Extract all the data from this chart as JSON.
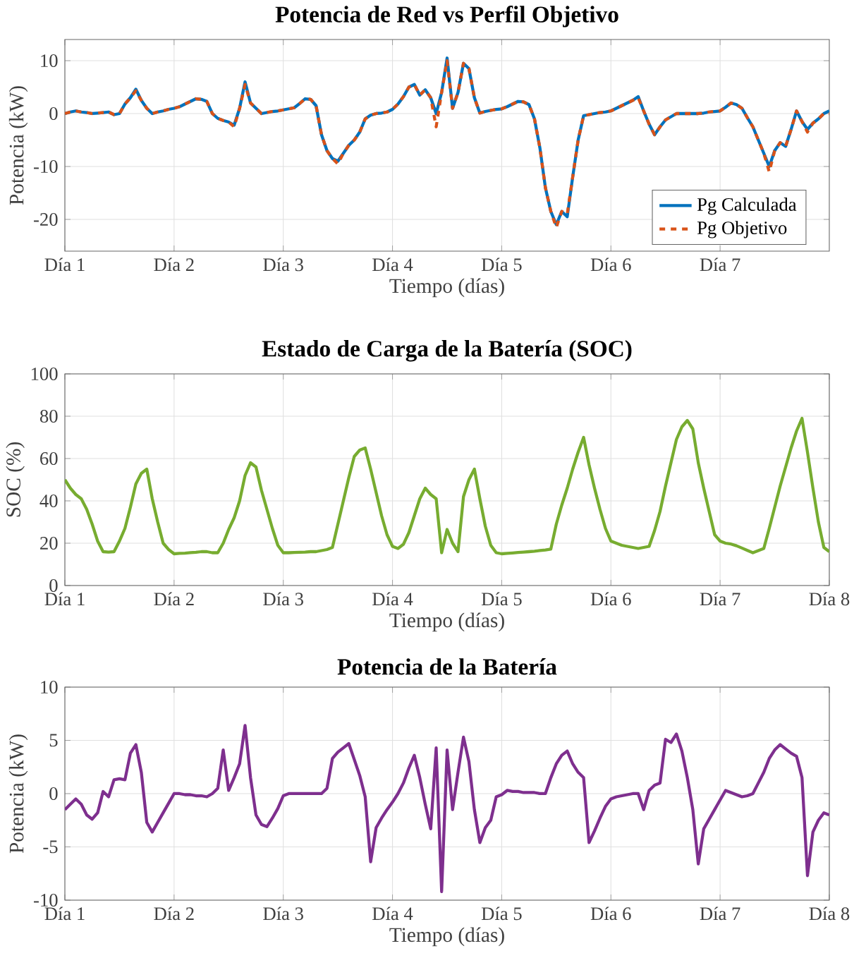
{
  "chart_data": [
    {
      "type": "line",
      "title": "Potencia de Red vs Perfil Objetivo",
      "xlabel": "Tiempo (días)",
      "ylabel": "Potencia (kW)",
      "categories": [
        "Día 1",
        null,
        null,
        null,
        null,
        null,
        null,
        null,
        null,
        null,
        null,
        null,
        null,
        null,
        null,
        null,
        null,
        null,
        null,
        null,
        "Día 2",
        null,
        null,
        null,
        null,
        null,
        null,
        null,
        null,
        null,
        null,
        null,
        null,
        null,
        null,
        null,
        null,
        null,
        null,
        null,
        "Día 3",
        null,
        null,
        null,
        null,
        null,
        null,
        null,
        null,
        null,
        null,
        null,
        null,
        null,
        null,
        null,
        null,
        null,
        null,
        null,
        "Día 4",
        null,
        null,
        null,
        null,
        null,
        null,
        null,
        null,
        null,
        null,
        null,
        null,
        null,
        null,
        null,
        null,
        null,
        null,
        null,
        "Día 5",
        null,
        null,
        null,
        null,
        null,
        null,
        null,
        null,
        null,
        null,
        null,
        null,
        null,
        null,
        null,
        null,
        null,
        null,
        null,
        "Día 6",
        null,
        null,
        null,
        null,
        null,
        null,
        null,
        null,
        null,
        null,
        null,
        null,
        null,
        null,
        null,
        null,
        null,
        null,
        null,
        "Día 7",
        null,
        null,
        null,
        null,
        null,
        null,
        null,
        null,
        null,
        null,
        null,
        null,
        null,
        null,
        null,
        null,
        null,
        null,
        null,
        null
      ],
      "series": [
        {
          "name": "Pg Calculada",
          "color": "#0072bd",
          "line_style": "solid",
          "values": [
            0,
            0.3,
            0.5,
            0.3,
            0.2,
            0,
            0.1,
            0.2,
            0.3,
            -0.2,
            0,
            1.8,
            3,
            4.6,
            2.5,
            1,
            0,
            0.3,
            0.5,
            0.8,
            1,
            1.3,
            1.8,
            2.3,
            2.8,
            2.7,
            2.3,
            0,
            -0.9,
            -1.3,
            -1.6,
            -2.2,
            1,
            6,
            2,
            1,
            0,
            0.2,
            0.4,
            0.5,
            0.7,
            0.9,
            1.1,
            1.9,
            2.8,
            2.7,
            1.5,
            -4,
            -7,
            -8.5,
            -9,
            -7.5,
            -6,
            -5,
            -3.5,
            -1,
            -0.3,
            0,
            0.1,
            0.3,
            0.8,
            1.8,
            3.2,
            5,
            5.5,
            3.5,
            4.5,
            3,
            0,
            4,
            10.5,
            1,
            4,
            9.5,
            8.5,
            3,
            0.1,
            0.4,
            0.6,
            0.8,
            0.9,
            1.3,
            1.8,
            2.3,
            2.2,
            1.7,
            -1,
            -6.5,
            -14,
            -18.5,
            -21,
            -18.5,
            -19.5,
            -12,
            -5,
            -0.4,
            -0.2,
            0,
            0.2,
            0.3,
            0.5,
            1,
            1.5,
            2,
            2.5,
            3.2,
            0.5,
            -2,
            -4,
            -2.5,
            -1.2,
            -0.6,
            0,
            0,
            0,
            0,
            0,
            0.1,
            0.3,
            0.4,
            0.5,
            1.2,
            2,
            1.7,
            1,
            -0.8,
            -2.5,
            -5,
            -7.5,
            -10,
            -7,
            -5.5,
            -6.2,
            -3,
            0.5,
            -1.5,
            -3,
            -1.8,
            -1,
            0,
            0.5
          ]
        },
        {
          "name": "Pg Objetivo",
          "color": "#d95319",
          "line_style": "dashed",
          "values": [
            0,
            0.3,
            0.5,
            0.3,
            0.2,
            0,
            0.1,
            0.2,
            0.3,
            -0.2,
            0,
            1.8,
            3,
            4.3,
            2.5,
            1,
            0,
            0.3,
            0.5,
            0.8,
            1,
            1.3,
            1.8,
            2.3,
            2.8,
            2.7,
            2.3,
            0,
            -0.9,
            -1.3,
            -1.6,
            -2.5,
            1,
            5.5,
            2,
            1,
            0,
            0.2,
            0.4,
            0.5,
            0.7,
            0.9,
            1.1,
            1.9,
            2.8,
            2.7,
            1.5,
            -4,
            -7,
            -8.5,
            -9.5,
            -7.5,
            -6,
            -5,
            -3.5,
            -1,
            -0.3,
            0,
            0.1,
            0.3,
            0.8,
            1.8,
            3.2,
            5,
            5.5,
            3.5,
            4.5,
            3,
            -2.5,
            4,
            10,
            1,
            4,
            9.5,
            8.5,
            3,
            0.1,
            0.4,
            0.6,
            0.8,
            0.9,
            1.3,
            1.8,
            2.3,
            2.2,
            1.7,
            -1,
            -6.5,
            -14,
            -18.5,
            -21.5,
            -18.5,
            -19,
            -12,
            -5,
            -0.4,
            -0.2,
            0,
            0.2,
            0.3,
            0.5,
            1,
            1.5,
            2,
            2.5,
            3,
            0.5,
            -2,
            -4,
            -2.5,
            -1.2,
            -0.6,
            0,
            0,
            0,
            0,
            0,
            0.1,
            0.3,
            0.4,
            0.5,
            1.2,
            2,
            1.7,
            1,
            -0.8,
            -2.5,
            -5,
            -7.5,
            -11,
            -7,
            -5.5,
            -6.2,
            -3,
            0.5,
            -1.5,
            -3.5,
            -1.8,
            -1,
            0,
            0
          ]
        }
      ],
      "ylim": [
        -26,
        14
      ],
      "yticks": [
        -20,
        -10,
        0,
        10
      ],
      "grid": true,
      "legend": "bottom right"
    },
    {
      "type": "line",
      "title": "Estado de Carga de la Batería (SOC)",
      "xlabel": "Tiempo (días)",
      "ylabel": "SOC (%)",
      "categories": [
        "Día 1",
        null,
        null,
        null,
        null,
        null,
        null,
        null,
        null,
        null,
        null,
        null,
        null,
        null,
        null,
        null,
        null,
        null,
        null,
        null,
        "Día 2",
        null,
        null,
        null,
        null,
        null,
        null,
        null,
        null,
        null,
        null,
        null,
        null,
        null,
        null,
        null,
        null,
        null,
        null,
        null,
        "Día 3",
        null,
        null,
        null,
        null,
        null,
        null,
        null,
        null,
        null,
        null,
        null,
        null,
        null,
        null,
        null,
        null,
        null,
        null,
        null,
        "Día 4",
        null,
        null,
        null,
        null,
        null,
        null,
        null,
        null,
        null,
        null,
        null,
        null,
        null,
        null,
        null,
        null,
        null,
        null,
        null,
        "Día 5",
        null,
        null,
        null,
        null,
        null,
        null,
        null,
        null,
        null,
        null,
        null,
        null,
        null,
        null,
        null,
        null,
        null,
        null,
        null,
        "Día 6",
        null,
        null,
        null,
        null,
        null,
        null,
        null,
        null,
        null,
        null,
        null,
        null,
        null,
        null,
        null,
        null,
        null,
        null,
        null,
        "Día 7",
        null,
        null,
        null,
        null,
        null,
        null,
        null,
        null,
        null,
        null,
        null,
        null,
        null,
        null,
        null,
        null,
        null,
        null,
        null,
        "Día 8"
      ],
      "series": [
        {
          "color": "#77ac30",
          "values": [
            50,
            46,
            43,
            41,
            36,
            29,
            21,
            16,
            15.8,
            16,
            21,
            27,
            37,
            48,
            53,
            55,
            41,
            30,
            20,
            17,
            15,
            15.2,
            15.3,
            15.5,
            15.7,
            16,
            16,
            15.5,
            15.5,
            20,
            26.5,
            32,
            40,
            52,
            58,
            56,
            45,
            36,
            27,
            19,
            15.5,
            15.5,
            15.6,
            15.7,
            15.8,
            16,
            16,
            16.5,
            17,
            18,
            29,
            40,
            51,
            61,
            64,
            65,
            55,
            44,
            33,
            24,
            18.5,
            17.5,
            19.5,
            25,
            33,
            41,
            46,
            43,
            41,
            15.5,
            26.5,
            20,
            16,
            42,
            50,
            55,
            41,
            28,
            19,
            15.5,
            15,
            15.2,
            15.4,
            15.6,
            15.8,
            16,
            16.2,
            16.5,
            16.8,
            17.2,
            29,
            38,
            46,
            55,
            63,
            70,
            57,
            46,
            36,
            27,
            21,
            20,
            19,
            18.5,
            18,
            17.5,
            18,
            18.5,
            26,
            35,
            47,
            58,
            69,
            75,
            78,
            74,
            58,
            46,
            35,
            24,
            21,
            20,
            19.6,
            18.8,
            17.7,
            16.6,
            15.5,
            16.5,
            17.5,
            27,
            37,
            47,
            56,
            65,
            73,
            79,
            63,
            46,
            30,
            18,
            16
          ]
        }
      ],
      "ylim": [
        0,
        100
      ],
      "yticks": [
        0,
        20,
        40,
        60,
        80,
        100
      ],
      "grid": true
    },
    {
      "type": "line",
      "title": "Potencia de la Batería",
      "xlabel": "Tiempo (días)",
      "ylabel": "Potencia (kW)",
      "categories": [
        "Día 1",
        null,
        null,
        null,
        null,
        null,
        null,
        null,
        null,
        null,
        null,
        null,
        null,
        null,
        null,
        null,
        null,
        null,
        null,
        null,
        "Día 2",
        null,
        null,
        null,
        null,
        null,
        null,
        null,
        null,
        null,
        null,
        null,
        null,
        null,
        null,
        null,
        null,
        null,
        null,
        null,
        "Día 3",
        null,
        null,
        null,
        null,
        null,
        null,
        null,
        null,
        null,
        null,
        null,
        null,
        null,
        null,
        null,
        null,
        null,
        null,
        null,
        "Día 4",
        null,
        null,
        null,
        null,
        null,
        null,
        null,
        null,
        null,
        null,
        null,
        null,
        null,
        null,
        null,
        null,
        null,
        null,
        null,
        "Día 5",
        null,
        null,
        null,
        null,
        null,
        null,
        null,
        null,
        null,
        null,
        null,
        null,
        null,
        null,
        null,
        null,
        null,
        null,
        null,
        "Día 6",
        null,
        null,
        null,
        null,
        null,
        null,
        null,
        null,
        null,
        null,
        null,
        null,
        null,
        null,
        null,
        null,
        null,
        null,
        null,
        "Día 7",
        null,
        null,
        null,
        null,
        null,
        null,
        null,
        null,
        null,
        null,
        null,
        null,
        null,
        null,
        null,
        null,
        null,
        null,
        null,
        "Día 8"
      ],
      "series": [
        {
          "color": "#7e2f8e",
          "values": [
            -1.5,
            -1,
            -0.5,
            -1,
            -2,
            -2.4,
            -1.8,
            0.2,
            -0.3,
            1.3,
            1.4,
            1.3,
            3.8,
            4.6,
            2,
            -2.7,
            -3.6,
            -2.7,
            -1.8,
            -0.9,
            0,
            0,
            -0.1,
            -0.1,
            -0.2,
            -0.2,
            -0.3,
            0,
            0.5,
            4.1,
            0.3,
            1.5,
            2.8,
            6.4,
            1.5,
            -2,
            -2.9,
            -3.1,
            -2.3,
            -1.4,
            -0.2,
            0,
            0,
            0,
            0,
            0,
            0,
            0,
            0.5,
            3.3,
            3.9,
            4.3,
            4.7,
            3.2,
            1.7,
            -0.3,
            -6.4,
            -3.2,
            -2.3,
            -1.5,
            -0.8,
            0,
            1,
            2.4,
            3.6,
            1.5,
            -1,
            -3.3,
            4.3,
            -9.2,
            4.1,
            -1.5,
            2,
            5.3,
            3,
            -1.5,
            -4.6,
            -3.2,
            -2.5,
            -0.3,
            -0.1,
            0.3,
            0.2,
            0.2,
            0.1,
            0.1,
            0.1,
            0,
            0,
            1.5,
            2.8,
            3.6,
            4,
            2.8,
            2,
            1.5,
            -4.6,
            -3.5,
            -2.3,
            -1.2,
            -0.5,
            -0.3,
            -0.2,
            -0.1,
            0,
            0,
            -1.5,
            0.3,
            0.8,
            1,
            5.1,
            4.8,
            5.6,
            4,
            1.5,
            -1.5,
            -6.6,
            -3.3,
            -2.4,
            -1.5,
            -0.6,
            0.3,
            0.1,
            -0.1,
            -0.3,
            -0.2,
            0,
            1,
            2,
            3.3,
            4.1,
            4.6,
            4.2,
            3.8,
            3.5,
            1.5,
            -7.7,
            -3.6,
            -2.5,
            -1.8,
            -2
          ]
        }
      ],
      "ylim": [
        -10,
        10
      ],
      "yticks": [
        -10,
        -5,
        0,
        5,
        10
      ],
      "grid": true
    }
  ]
}
